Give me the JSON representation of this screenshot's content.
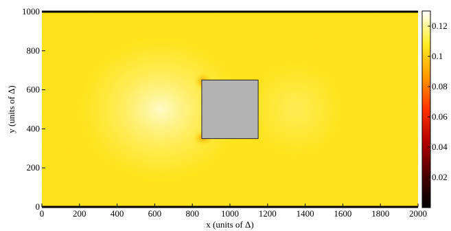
{
  "chart_data": {
    "type": "heatmap",
    "title": "",
    "xlabel": "x (units of Δ)",
    "ylabel": "y (units of Δ)",
    "xlim": [
      0,
      2000
    ],
    "ylim": [
      0,
      1000
    ],
    "xticks": [
      0,
      200,
      400,
      600,
      800,
      1000,
      1200,
      1400,
      1600,
      1800,
      2000
    ],
    "yticks": [
      0,
      200,
      400,
      600,
      800,
      1000
    ],
    "obstacle": {
      "x0": 850,
      "x1": 1150,
      "y0": 350,
      "y1": 650,
      "color": "#b3b3b3"
    },
    "background_value": 0.105,
    "colorbar": {
      "range": [
        0,
        0.13
      ],
      "ticks": [
        0.02,
        0.04,
        0.06,
        0.08,
        0.1,
        0.12
      ],
      "tick_labels": [
        "0.02",
        "0.04",
        "0.06",
        "0.08",
        "0.1",
        "0.12"
      ],
      "colormap": "hot",
      "stops": [
        "#000000",
        "#4d0000",
        "#b30000",
        "#ff3300",
        "#ff9900",
        "#ffee22",
        "#ffffff"
      ]
    }
  }
}
